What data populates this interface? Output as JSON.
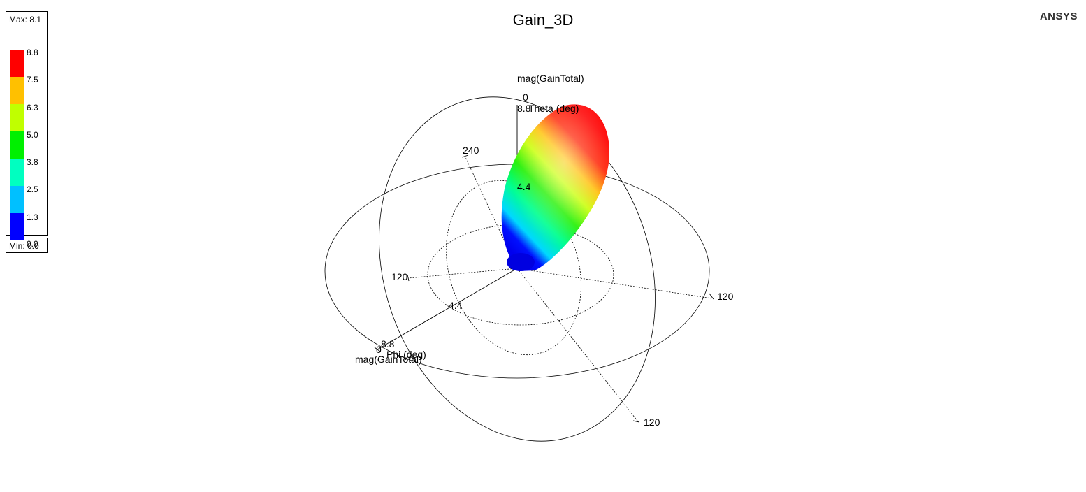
{
  "title": "Gain_3D",
  "brand": "ANSYS",
  "legend": {
    "max_label": "Max: 8.1",
    "min_label": "Min: 0.0",
    "ticks": [
      "8.8",
      "7.5",
      "6.3",
      "5.0",
      "3.8",
      "2.5",
      "1.3",
      "0.0"
    ],
    "colors": [
      "#ff0000",
      "#ffc000",
      "#c0ff00",
      "#00f000",
      "#00ffc0",
      "#00c0ff",
      "#0000ff"
    ]
  },
  "chart_data": {
    "type": "3d-polar-radiation-pattern",
    "title": "Gain_3D",
    "quantity": "mag(GainTotal)",
    "max": 8.1,
    "min": 0.0,
    "color_scale": [
      0.0,
      1.3,
      2.5,
      3.8,
      5.0,
      6.3,
      7.5,
      8.8
    ],
    "axes": {
      "theta_axis_label": "Theta (deg)",
      "phi_axis_label": "Phi (deg)",
      "magnitude_label": "mag(GainTotal)",
      "magnitude_ticks": [
        "8.8",
        "4.4",
        "0"
      ],
      "angle_labels": [
        "240",
        "120",
        "120",
        "120"
      ]
    },
    "labels": {
      "top_mag": "mag(GainTotal)",
      "top_zero": "0",
      "top_88": "8.8",
      "top_theta": "Theta (deg)",
      "vert_44": "4.4",
      "a240": "240",
      "a120_left": "120",
      "a120_right": "120",
      "a120_bottom": "120",
      "phi_44": "4.4",
      "phi_88": "8.8",
      "phi_zero": "0",
      "phi_label": "Phi (deg)",
      "bottom_mag": "mag(GainTotal)"
    }
  }
}
